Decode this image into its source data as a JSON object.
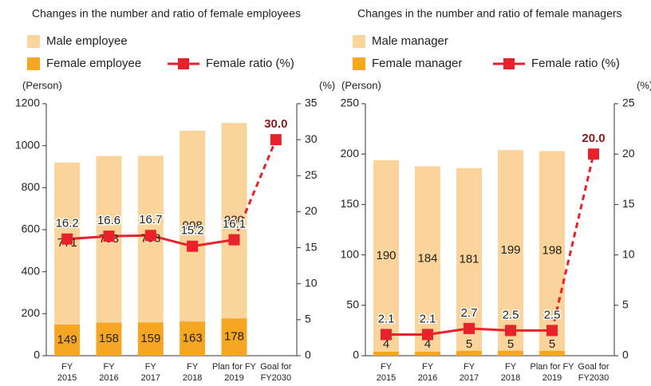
{
  "chart_data": [
    {
      "type": "bar_line",
      "title": "Changes in the number and ratio of female employees",
      "categories": [
        [
          "FY",
          "2015"
        ],
        [
          "FY",
          "2016"
        ],
        [
          "FY",
          "2017"
        ],
        [
          "FY",
          "2018"
        ],
        [
          "Plan for FY",
          "2019"
        ],
        [
          "Goal for",
          "FY2030"
        ]
      ],
      "series": [
        {
          "name": "Female employee",
          "color": "#f5a623",
          "kind": "bar",
          "values": [
            149,
            158,
            159,
            163,
            178,
            null
          ]
        },
        {
          "name": "Male employee",
          "color": "#fad49a",
          "kind": "bar",
          "values": [
            771,
            793,
            793,
            908,
            930,
            null
          ]
        },
        {
          "name": "Female ratio (%)",
          "color": "#e8212a",
          "kind": "line",
          "axis": "y2",
          "values": [
            16.2,
            16.6,
            16.7,
            15.2,
            16.1,
            30.0
          ],
          "value_labels": [
            "16.2",
            "16.6",
            "16.7",
            "15.2",
            "16.1",
            "30.0"
          ]
        }
      ],
      "y_label": "(Person)",
      "y2_label": "(%)",
      "ylim": [
        0,
        1200
      ],
      "yticks": [
        0,
        200,
        400,
        600,
        800,
        1000,
        1200
      ],
      "y2lim": [
        0,
        35
      ],
      "y2ticks": [
        0,
        5,
        10,
        15,
        20,
        25,
        30,
        35
      ]
    },
    {
      "type": "bar_line",
      "title": "Changes in the number and ratio of female managers",
      "categories": [
        [
          "FY",
          "2015"
        ],
        [
          "FY",
          "2016"
        ],
        [
          "FY",
          "2017"
        ],
        [
          "FY",
          "2018"
        ],
        [
          "Plan for FY",
          "2019"
        ],
        [
          "Goal for",
          "FY2030"
        ]
      ],
      "series": [
        {
          "name": "Female manager",
          "color": "#f5a623",
          "kind": "bar",
          "values": [
            4,
            4,
            5,
            5,
            5,
            null
          ]
        },
        {
          "name": "Male manager",
          "color": "#fad49a",
          "kind": "bar",
          "values": [
            190,
            184,
            181,
            199,
            198,
            null
          ]
        },
        {
          "name": "Female ratio (%)",
          "color": "#e8212a",
          "kind": "line",
          "axis": "y2",
          "values": [
            2.1,
            2.1,
            2.7,
            2.5,
            2.5,
            20.0
          ],
          "value_labels": [
            "2.1",
            "2.1",
            "2.7",
            "2.5",
            "2.5",
            "20.0"
          ]
        }
      ],
      "y_label": "(Person)",
      "y2_label": "(%)",
      "ylim": [
        0,
        250
      ],
      "yticks": [
        0,
        50,
        100,
        150,
        200,
        250
      ],
      "y2lim": [
        0,
        25
      ],
      "y2ticks": [
        0,
        5,
        10,
        15,
        20,
        25
      ]
    }
  ]
}
